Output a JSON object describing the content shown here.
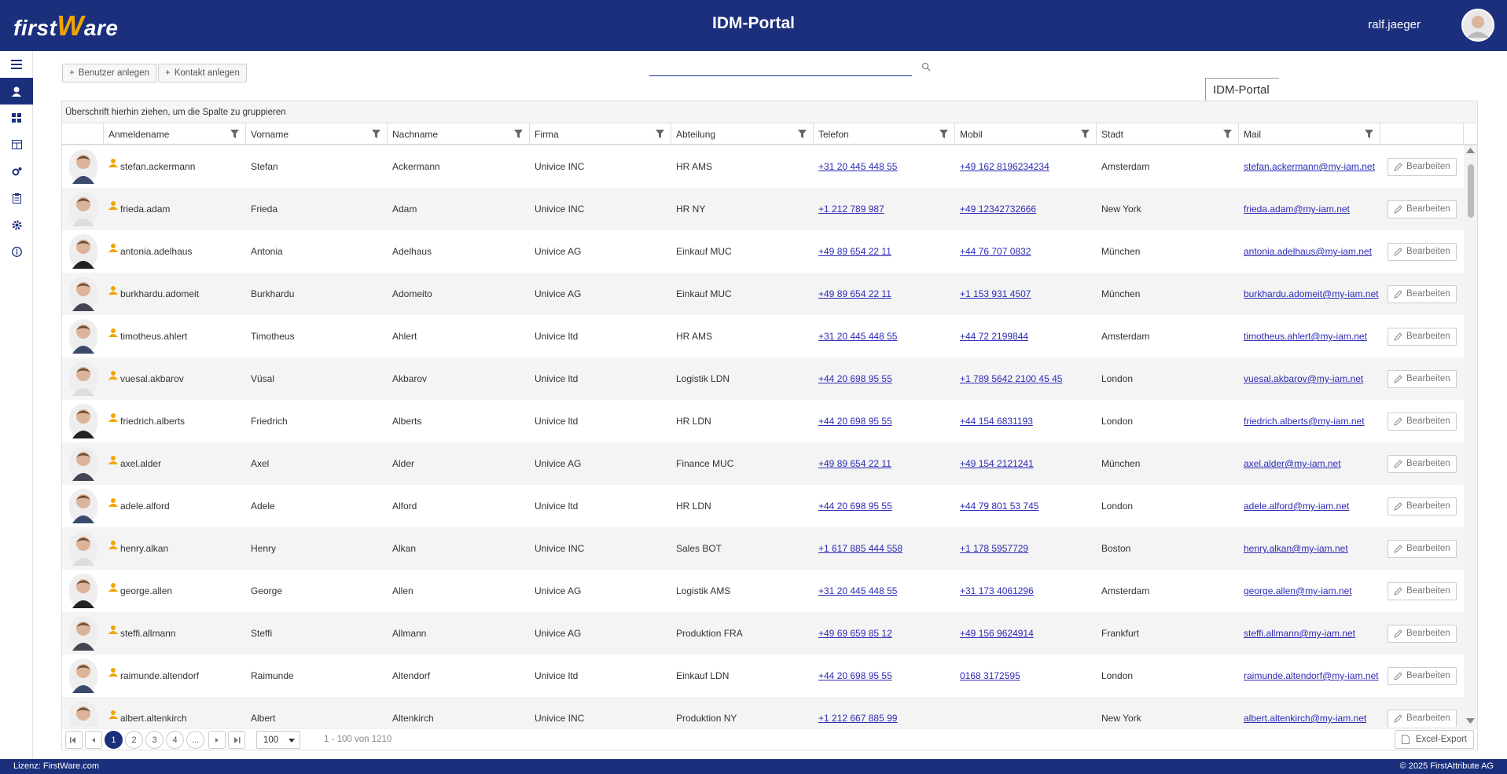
{
  "header": {
    "logo": {
      "prefix": "first",
      "mark": "W",
      "suffix": "are"
    },
    "title": "IDM-Portal",
    "user": "ralf.jaeger"
  },
  "toolbar": {
    "buttons": [
      "Benutzer anlegen",
      "Kontakt anlegen"
    ],
    "tooltip": "IDM-Portal"
  },
  "table": {
    "group_hint": "Überschrift hierhin ziehen, um die Spalte zu gruppieren",
    "columns": [
      "Anmeldename",
      "Vorname",
      "Nachname",
      "Firma",
      "Abteilung",
      "Telefon",
      "Mobil",
      "Stadt",
      "Mail"
    ],
    "edit_label": "Bearbeiten",
    "rows": [
      [
        "stefan.ackermann",
        "Stefan",
        "Ackermann",
        "Univice INC",
        "HR AMS",
        "+31 20 445 448 55",
        "+49 162 8196234234",
        "Amsterdam",
        "stefan.ackermann@my-iam.net"
      ],
      [
        "frieda.adam",
        "Frieda",
        "Adam",
        "Univice INC",
        "HR NY",
        "+1 212 789 987",
        "+49 12342732666",
        "New York",
        "frieda.adam@my-iam.net"
      ],
      [
        "antonia.adelhaus",
        "Antonia",
        "Adelhaus",
        "Univice AG",
        "Einkauf MUC",
        "+49 89 654 22 11",
        "+44 76 707 0832",
        "München",
        "antonia.adelhaus@my-iam.net"
      ],
      [
        "burkhardu.adomeit",
        "Burkhardu",
        "Adomeito",
        "Univice AG",
        "Einkauf MUC",
        "+49 89 654 22 11",
        "+1 153 931 4507",
        "München",
        "burkhardu.adomeit@my-iam.net"
      ],
      [
        "timotheus.ahlert",
        "Timotheus",
        "Ahlert",
        "Univice ltd",
        "HR AMS",
        "+31 20 445 448 55",
        "+44 72 2199844",
        "Amsterdam",
        "timotheus.ahlert@my-iam.net"
      ],
      [
        "vuesal.akbarov",
        "Vüsal",
        "Akbarov",
        "Univice ltd",
        "Logistik LDN",
        "+44 20 698 95 55",
        "+1 789 5642 2100 45 45",
        "London",
        "vuesal.akbarov@my-iam.net"
      ],
      [
        "friedrich.alberts",
        "Friedrich",
        "Alberts",
        "Univice ltd",
        "HR LDN",
        "+44 20 698 95 55",
        "+44 154 6831193",
        "London",
        "friedrich.alberts@my-iam.net"
      ],
      [
        "axel.alder",
        "Axel",
        "Alder",
        "Univice AG",
        "Finance MUC",
        "+49 89 654 22 11",
        "+49 154 2121241",
        "München",
        "axel.alder@my-iam.net"
      ],
      [
        "adele.alford",
        "Adele",
        "Alford",
        "Univice ltd",
        "HR LDN",
        "+44 20 698 95 55",
        "+44 79 801 53 745",
        "London",
        "adele.alford@my-iam.net"
      ],
      [
        "henry.alkan",
        "Henry",
        "Alkan",
        "Univice INC",
        "Sales BOT",
        "+1 617 885 444 558",
        "+1 178 5957729",
        "Boston",
        "henry.alkan@my-iam.net"
      ],
      [
        "george.allen",
        "George",
        "Allen",
        "Univice AG",
        "Logistik AMS",
        "+31 20 445 448 55",
        "+31 173 4061296",
        "Amsterdam",
        "george.allen@my-iam.net"
      ],
      [
        "steffi.allmann",
        "Steffi",
        "Allmann",
        "Univice AG",
        "Produktion FRA",
        "+49 69 659 85 12",
        "+49 156 9624914",
        "Frankfurt",
        "steffi.allmann@my-iam.net"
      ],
      [
        "raimunde.altendorf",
        "Raimunde",
        "Altendorf",
        "Univice ltd",
        "Einkauf LDN",
        "+44 20 698 95 55",
        "0168 3172595",
        "London",
        "raimunde.altendorf@my-iam.net"
      ],
      [
        "albert.altenkirch",
        "Albert",
        "Altenkirch",
        "Univice INC",
        "Produktion NY",
        "+1 212 667 885 99",
        null,
        "New York",
        "albert.altenkirch@my-iam.net"
      ]
    ]
  },
  "pager": {
    "pages": [
      "1",
      "2",
      "3",
      "4",
      "..."
    ],
    "page_size": "100",
    "info": "1 - 100 von 1210",
    "export": "Excel-Export"
  },
  "footer": {
    "license": "Lizenz: FirstWare.com",
    "copyright": "© 2025 FirstAttribute AG"
  }
}
